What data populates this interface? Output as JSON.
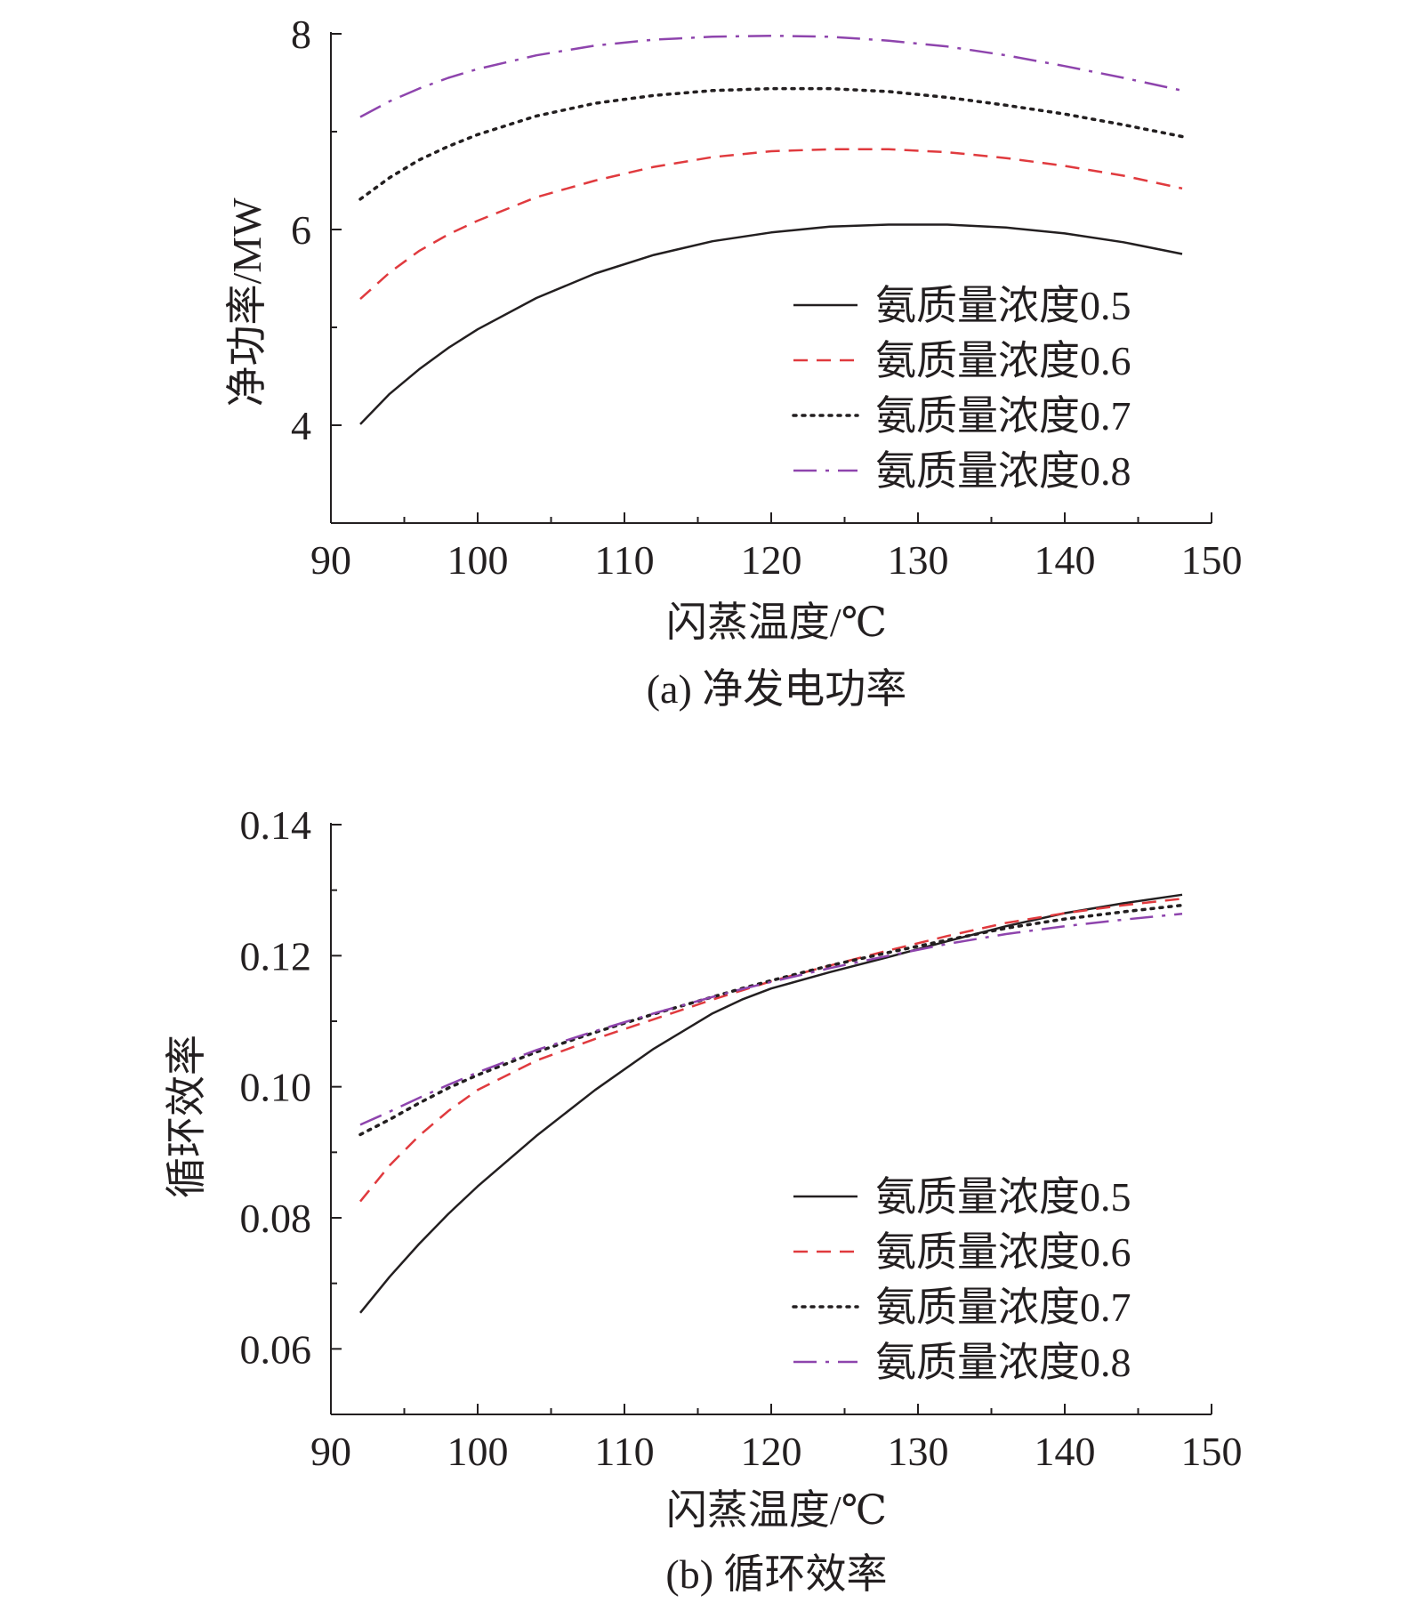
{
  "chart_data": [
    {
      "type": "line",
      "caption": "(a) 净发电功率",
      "xlabel": "闪蒸温度/℃",
      "ylabel": "净功率/MW",
      "xlim": [
        90,
        150
      ],
      "ylim": [
        3,
        8
      ],
      "xticks": [
        90,
        100,
        110,
        120,
        130,
        140,
        150
      ],
      "yticks": [
        4,
        6,
        8
      ],
      "ytick_labels": [
        "4",
        "6",
        "8"
      ],
      "legend_position": "bottom-right",
      "grid": false,
      "x": [
        92,
        94,
        96,
        98,
        100,
        104,
        108,
        112,
        116,
        120,
        124,
        128,
        132,
        136,
        140,
        144,
        148
      ],
      "series": [
        {
          "name": "氨质量浓度0.5",
          "style": "solid",
          "color": "#231f20",
          "values": [
            4.01,
            4.32,
            4.57,
            4.79,
            4.98,
            5.3,
            5.55,
            5.74,
            5.88,
            5.97,
            6.03,
            6.05,
            6.05,
            6.02,
            5.96,
            5.87,
            5.75
          ]
        },
        {
          "name": "氨质量浓度0.6",
          "style": "dashed",
          "color": "#e03a3e",
          "values": [
            5.29,
            5.56,
            5.78,
            5.95,
            6.09,
            6.33,
            6.5,
            6.64,
            6.74,
            6.8,
            6.82,
            6.82,
            6.79,
            6.73,
            6.65,
            6.55,
            6.42
          ]
        },
        {
          "name": "氨质量浓度0.7",
          "style": "dotted",
          "color": "#231f20",
          "values": [
            6.31,
            6.53,
            6.71,
            6.85,
            6.97,
            7.16,
            7.29,
            7.37,
            7.42,
            7.44,
            7.44,
            7.41,
            7.35,
            7.27,
            7.18,
            7.07,
            6.95
          ]
        },
        {
          "name": "氨质量浓度0.8",
          "style": "dashdot",
          "color": "#8e44ad",
          "values": [
            7.15,
            7.31,
            7.44,
            7.55,
            7.64,
            7.78,
            7.88,
            7.94,
            7.97,
            7.98,
            7.97,
            7.93,
            7.87,
            7.78,
            7.67,
            7.55,
            7.42
          ]
        }
      ]
    },
    {
      "type": "line",
      "caption": "(b) 循环效率",
      "xlabel": "闪蒸温度/℃",
      "ylabel": "循环效率",
      "xlim": [
        90,
        150
      ],
      "ylim": [
        0.05,
        0.14
      ],
      "xticks": [
        90,
        100,
        110,
        120,
        130,
        140,
        150
      ],
      "yticks": [
        0.06,
        0.08,
        0.1,
        0.12,
        0.14
      ],
      "ytick_labels": [
        "0.06",
        "0.08",
        "0.10",
        "0.12",
        "0.14"
      ],
      "legend_position": "bottom-right",
      "grid": false,
      "x": [
        92,
        94,
        96,
        98,
        100,
        104,
        108,
        112,
        116,
        118,
        120,
        124,
        128,
        132,
        136,
        140,
        144,
        148
      ],
      "series": [
        {
          "name": "氨质量浓度0.5",
          "style": "solid",
          "color": "#231f20",
          "values": [
            0.0655,
            0.071,
            0.076,
            0.0806,
            0.0848,
            0.0925,
            0.0995,
            0.1058,
            0.1112,
            0.1133,
            0.115,
            0.1175,
            0.1198,
            0.1222,
            0.1245,
            0.1265,
            0.128,
            0.1293
          ]
        },
        {
          "name": "氨质量浓度0.6",
          "style": "dashed",
          "color": "#e03a3e",
          "values": [
            0.0825,
            0.088,
            0.0925,
            0.0963,
            0.0995,
            0.104,
            0.1073,
            0.1103,
            0.1133,
            0.1147,
            0.1161,
            0.1185,
            0.1208,
            0.123,
            0.125,
            0.1265,
            0.1277,
            0.1287
          ]
        },
        {
          "name": "氨质量浓度0.7",
          "style": "dotted",
          "color": "#231f20",
          "values": [
            0.0927,
            0.095,
            0.0975,
            0.0998,
            0.1018,
            0.1053,
            0.1083,
            0.1111,
            0.1137,
            0.115,
            0.1162,
            0.1185,
            0.1205,
            0.1224,
            0.1242,
            0.1256,
            0.1267,
            0.1277
          ]
        },
        {
          "name": "氨质量浓度0.8",
          "style": "dashdot",
          "color": "#8e44ad",
          "values": [
            0.0942,
            0.0962,
            0.0983,
            0.1003,
            0.1022,
            0.1056,
            0.1085,
            0.1112,
            0.1137,
            0.1149,
            0.116,
            0.1181,
            0.12,
            0.1218,
            0.1233,
            0.1245,
            0.1255,
            0.1264
          ]
        }
      ]
    }
  ]
}
